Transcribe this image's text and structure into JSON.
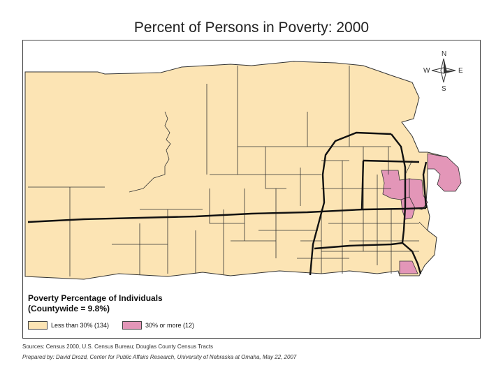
{
  "title": "Percent of Persons in Poverty: 2000",
  "compass": {
    "n": "N",
    "s": "S",
    "e": "E",
    "w": "W",
    "icon": "compass-rose-icon"
  },
  "legend": {
    "title_line1": "Poverty Percentage of Individuals",
    "title_line2": "(Countywide = 9.8%)",
    "items": [
      {
        "label": "Less than 30% (134)",
        "color": "#fce4b4"
      },
      {
        "label": "30% or more (12)",
        "color": "#e396b8"
      }
    ]
  },
  "sources": "Sources: Census 2000, U.S. Census Bureau; Douglas County Census Tracts",
  "prepared": "Prepared by: David Drozd, Center for Public Affairs Research, University of Nebraska at Omaha, May 22, 2007",
  "colors": {
    "low": "#fce4b4",
    "high": "#e396b8",
    "boundary": "#333333",
    "road": "#111111"
  }
}
